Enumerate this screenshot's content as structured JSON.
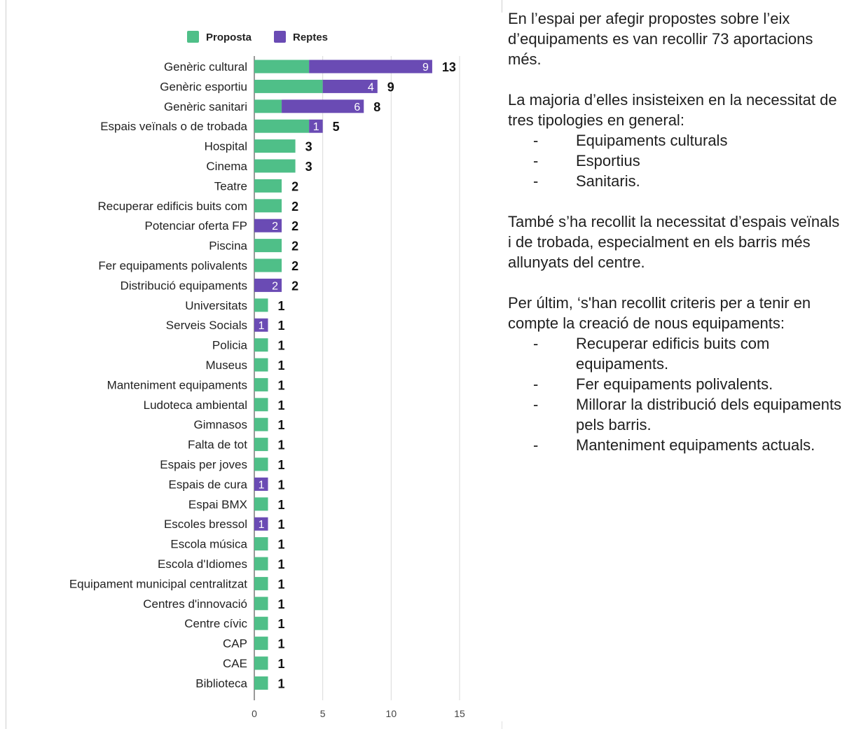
{
  "chart_data": {
    "type": "bar",
    "orientation": "horizontal",
    "stacked": true,
    "categories": [
      "Genèric cultural",
      "Genèric esportiu",
      "Genèric sanitari",
      "Espais veïnals o de trobada",
      "Hospital",
      "Cinema",
      "Teatre",
      "Recuperar edificis buits com",
      "Potenciar oferta FP",
      "Piscina",
      "Fer equipaments polivalents",
      "Distribució equipaments",
      "Universitats",
      "Serveis Socials",
      "Policia",
      "Museus",
      "Manteniment equipaments",
      "Ludoteca ambiental",
      "Gimnasos",
      "Falta de tot",
      "Espais per joves",
      "Espais de cura",
      "Espai BMX",
      "Escoles bressol",
      "Escola música",
      "Escola d'Idiomes",
      "Equipament municipal centralitzat",
      "Centres d'innovació",
      "Centre cívic",
      "CAP",
      "CAE",
      "Biblioteca"
    ],
    "series": [
      {
        "name": "Proposta",
        "color": "#4fbf88",
        "values": [
          4,
          5,
          2,
          4,
          3,
          3,
          2,
          2,
          0,
          2,
          2,
          0,
          1,
          0,
          1,
          1,
          1,
          1,
          1,
          1,
          1,
          0,
          1,
          0,
          1,
          1,
          1,
          1,
          1,
          1,
          1,
          1
        ]
      },
      {
        "name": "Reptes",
        "color": "#6a4bb4",
        "values": [
          9,
          4,
          6,
          1,
          0,
          0,
          0,
          0,
          2,
          0,
          0,
          2,
          0,
          1,
          0,
          0,
          0,
          0,
          0,
          0,
          0,
          1,
          0,
          1,
          0,
          0,
          0,
          0,
          0,
          0,
          0,
          0
        ]
      }
    ],
    "totals": [
      13,
      9,
      8,
      5,
      3,
      3,
      2,
      2,
      2,
      2,
      2,
      2,
      1,
      1,
      1,
      1,
      1,
      1,
      1,
      1,
      1,
      1,
      1,
      1,
      1,
      1,
      1,
      1,
      1,
      1,
      1,
      1
    ],
    "xlim": [
      0,
      15
    ],
    "xticks": [
      0,
      5,
      10,
      15
    ],
    "grid": true,
    "legend_position": "top",
    "title": "",
    "xlabel": "",
    "ylabel": ""
  },
  "text": {
    "intro": "En l’espai per afegir propostes sobre l’eix d’equipaments es van recollir 73 aportacions més.",
    "majority": "La majoria d’elles insisteixen en la necessitat de tres tipologies en general:",
    "types": [
      "Equipaments culturals",
      "Esportius",
      "Sanitaris."
    ],
    "neighbourhood": "També s’ha recollit la necessitat d’espais veïnals i de trobada, especialment en els barris més allunyats del centre.",
    "criteria": "Per últim, ‘s'han recollit criteris per a tenir en compte la creació de nous equipaments:",
    "criteria_items": [
      "Recuperar edificis buits com equipaments.",
      "Fer equipaments polivalents.",
      "Millorar la distribució dels equipaments pels barris.",
      "Manteniment equipaments actuals."
    ],
    "bullet": "-"
  }
}
